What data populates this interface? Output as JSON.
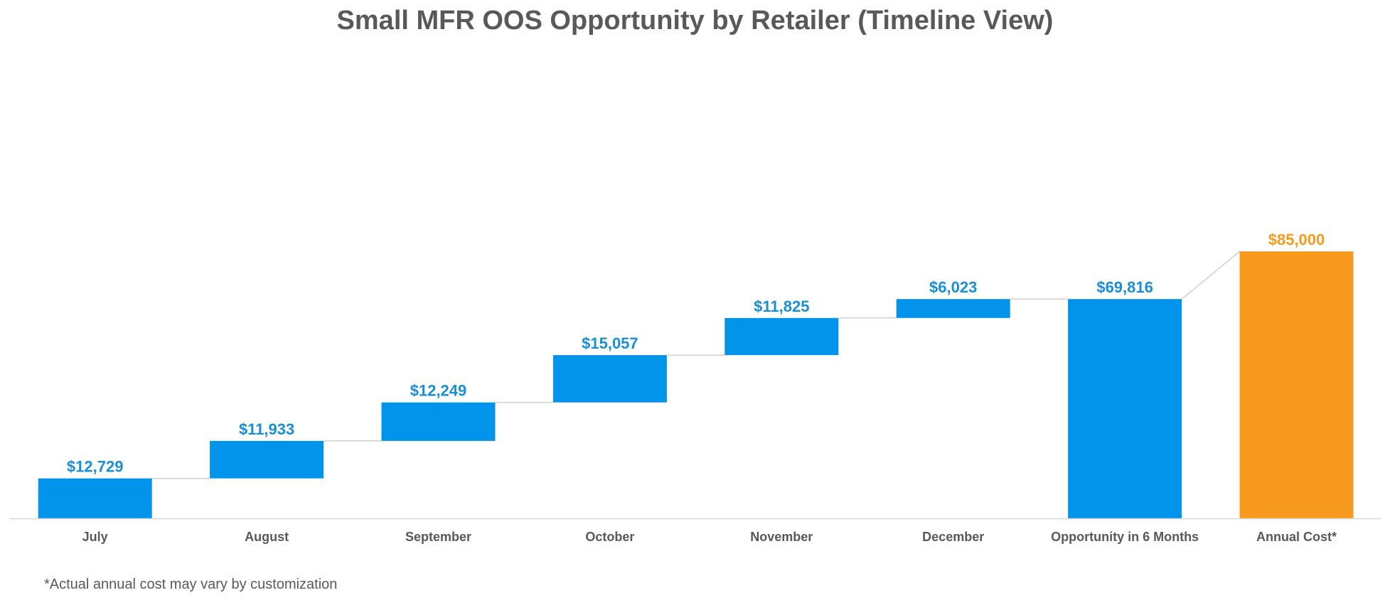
{
  "chart_data": {
    "type": "bar",
    "subtype": "waterfall",
    "title": "Small MFR OOS Opportunity by Retailer (Timeline View)",
    "categories": [
      "July",
      "August",
      "September",
      "October",
      "November",
      "December",
      "Opportunity in 6 Months",
      "Annual Cost*"
    ],
    "values": [
      12729,
      11933,
      12249,
      15057,
      11825,
      6023,
      69816,
      85000
    ],
    "data_labels": [
      "$12,729",
      "$11,933",
      "$12,249",
      "$15,057",
      "$11,825",
      "$6,023",
      "$69,816",
      "$85,000"
    ],
    "bar_kinds": [
      "increment",
      "increment",
      "increment",
      "increment",
      "increment",
      "increment",
      "total",
      "total"
    ],
    "colors": {
      "increment": "#0294EA",
      "total": "#0294EA",
      "highlight": "#F89A1E",
      "label_blue": "#1A8FD6",
      "label_orange": "#F89A1E",
      "connector": "#D0D0D0",
      "axis": "#D9D9D9",
      "tick_text": "#595959"
    },
    "highlight_category": "Annual Cost*",
    "ylim": [
      0,
      85000
    ],
    "grid": false,
    "legend": "none",
    "xlabel": "",
    "ylabel": ""
  },
  "footnote": "*Actual annual cost may vary by customization"
}
